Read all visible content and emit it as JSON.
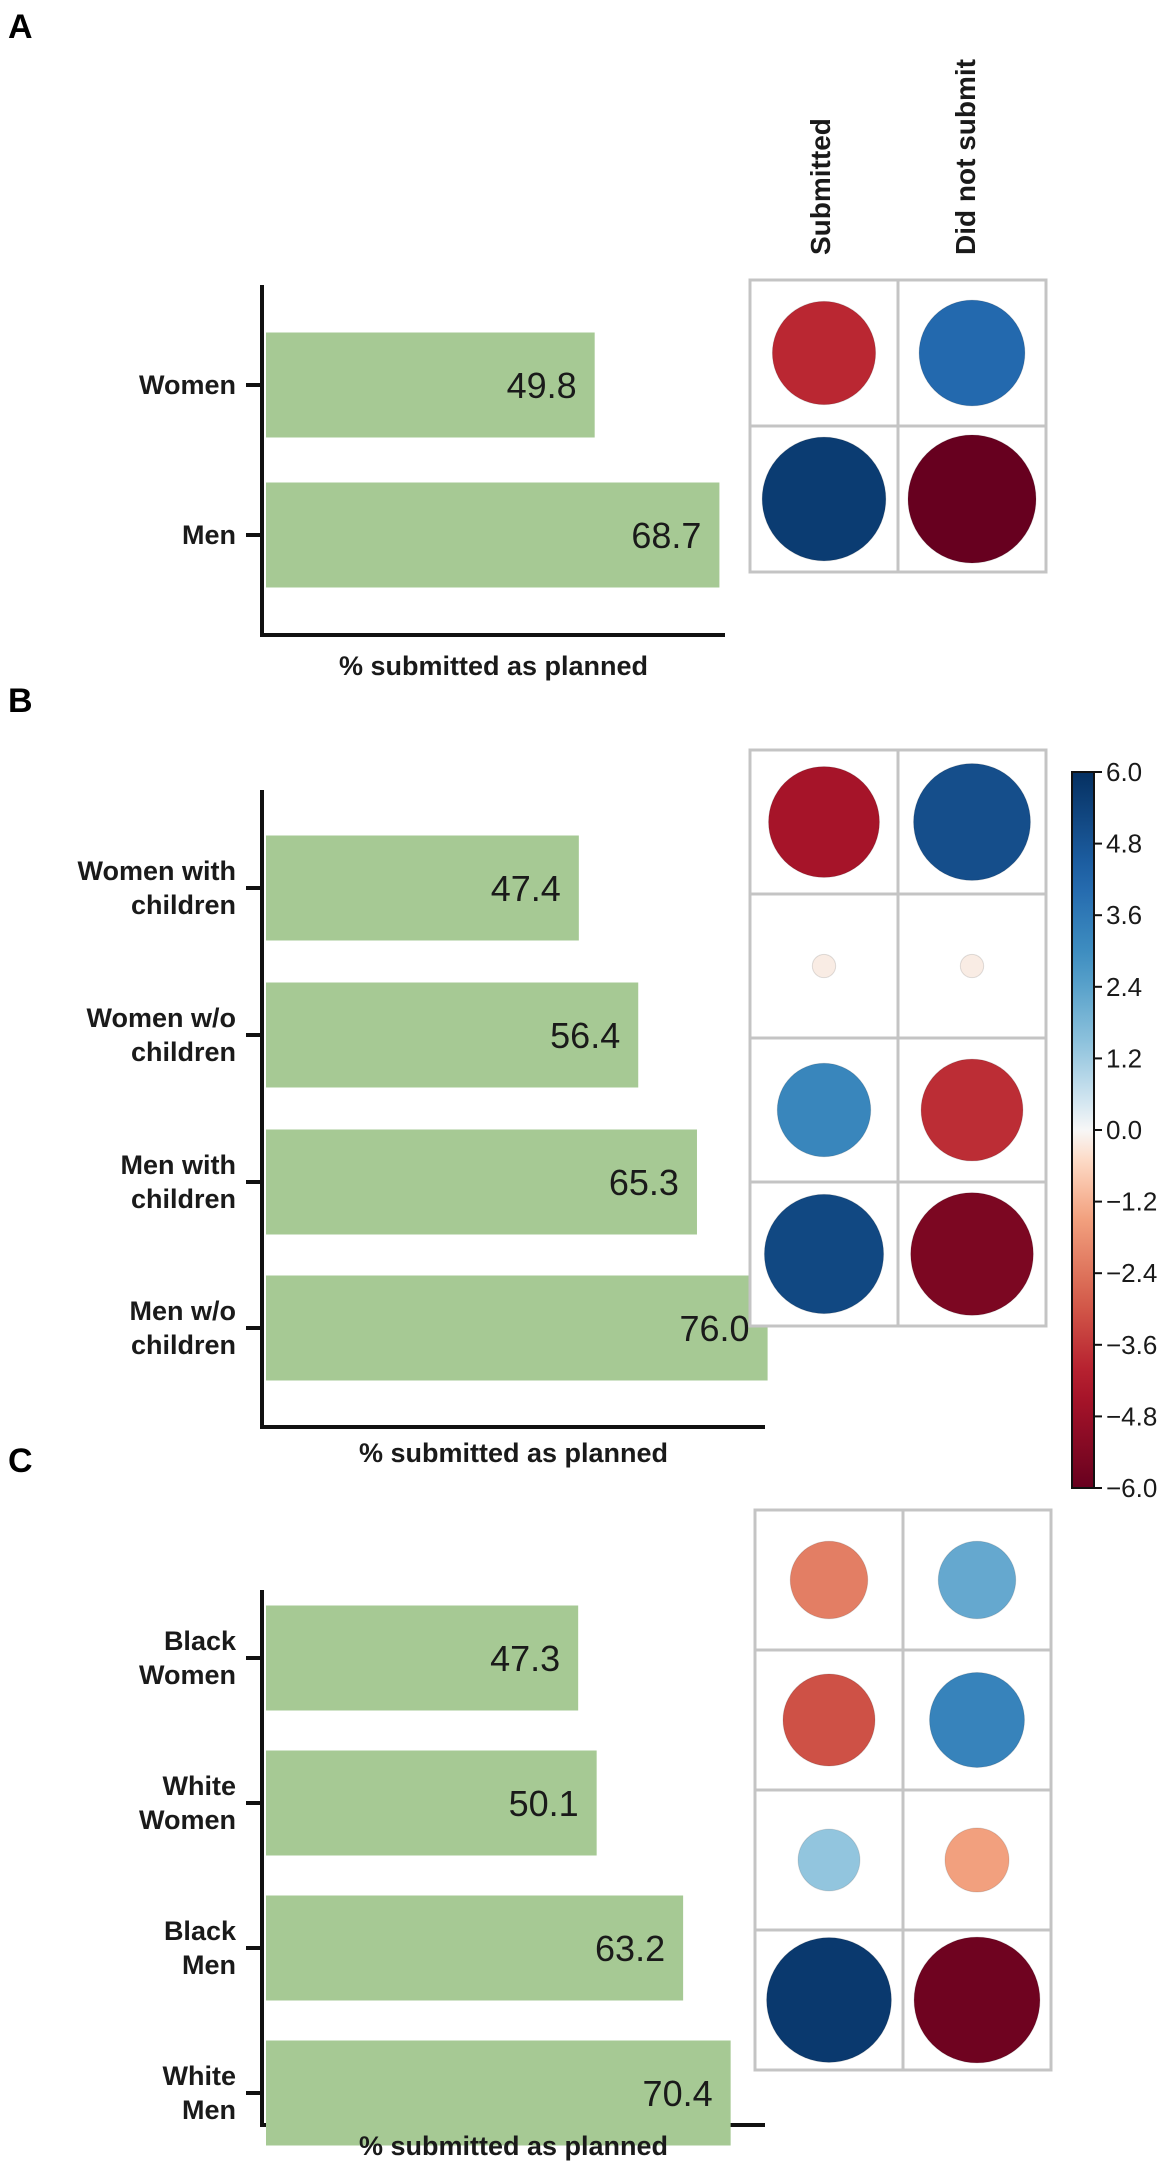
{
  "chart_data": [
    {
      "type": "bar",
      "panel_label": "A",
      "categories": [
        [
          "Women"
        ],
        [
          "Men"
        ]
      ],
      "values": [
        49.8,
        68.7
      ],
      "value_labels": [
        "49.8",
        "68.7"
      ],
      "xlabel": "% submitted as planned",
      "bar_color": "#a6c994",
      "xlim": [
        0,
        100
      ]
    },
    {
      "type": "bar",
      "panel_label": "B",
      "categories": [
        [
          "Women with",
          "children"
        ],
        [
          "Women w/o",
          "children"
        ],
        [
          "Men with",
          "children"
        ],
        [
          "Men w/o",
          "children"
        ]
      ],
      "values": [
        47.4,
        56.4,
        65.3,
        76.0
      ],
      "value_labels": [
        "47.4",
        "56.4",
        "65.3",
        "76.0"
      ],
      "xlabel": "% submitted as planned",
      "bar_color": "#a6c994",
      "xlim": [
        0,
        100
      ]
    },
    {
      "type": "bar",
      "panel_label": "C",
      "categories": [
        [
          "Black",
          "Women"
        ],
        [
          "White",
          "Women"
        ],
        [
          "Black",
          "Men"
        ],
        [
          "White",
          "Men"
        ]
      ],
      "values": [
        47.3,
        50.1,
        63.2,
        70.4
      ],
      "value_labels": [
        "47.3",
        "50.1",
        "63.2",
        "70.4"
      ],
      "xlabel": "% submitted as planned",
      "bar_color": "#a6c994",
      "xlim": [
        0,
        100
      ]
    },
    {
      "type": "heatmap",
      "panel_label": "A",
      "columns": [
        "Submitted",
        "Did not submit"
      ],
      "rows": [
        "Women",
        "Men"
      ],
      "residuals": [
        [
          -3.9,
          4.1
        ],
        [
          5.6,
          -6.0
        ]
      ]
    },
    {
      "type": "heatmap",
      "panel_label": "B",
      "columns": [
        "Submitted",
        "Did not submit"
      ],
      "rows": [
        "Women with children",
        "Women w/o children",
        "Men with children",
        "Men w/o children"
      ],
      "residuals": [
        [
          -4.5,
          5.0
        ],
        [
          -0.2,
          -0.2
        ],
        [
          3.2,
          -3.8
        ],
        [
          5.2,
          -5.5
        ]
      ]
    },
    {
      "type": "heatmap",
      "panel_label": "C",
      "columns": [
        "Submitted",
        "Did not submit"
      ],
      "rows": [
        "Black Women",
        "White Women",
        "Black Men",
        "White Men"
      ],
      "residuals": [
        [
          -2.2,
          2.2
        ],
        [
          -3.1,
          3.3
        ],
        [
          1.4,
          -1.5
        ],
        [
          5.7,
          -5.8
        ]
      ]
    }
  ],
  "legend": {
    "colorbar_ticks": [
      "6.0",
      "4.8",
      "3.6",
      "2.4",
      "1.2",
      "0.0",
      "−1.2",
      "−2.4",
      "−3.6",
      "−4.8",
      "−6.0"
    ],
    "range": [
      -6.0,
      6.0
    ],
    "colors": {
      "pos_strong": "#053061",
      "pos_mid": "#4393c3",
      "pos_light": "#d1e5f0",
      "neutral": "#f7f7f7",
      "neg_light": "#fddbc7",
      "neg_mid": "#d6604d",
      "neg_strong": "#67001f"
    }
  }
}
